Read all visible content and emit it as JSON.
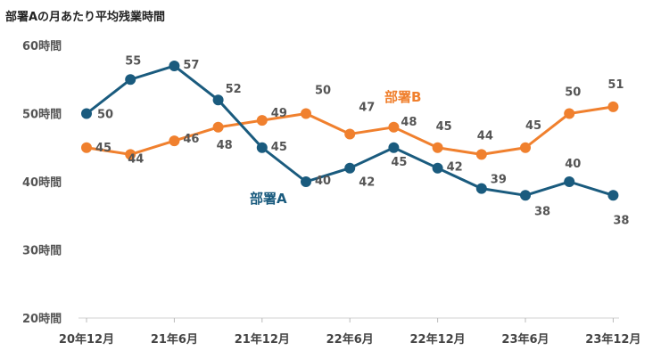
{
  "chart_data": {
    "type": "line",
    "title": "部署Aの月あたり平均残業時間",
    "xlabel": "",
    "ylabel": "",
    "ylim": [
      20,
      60
    ],
    "y_ticks": [
      "60時間",
      "50時間",
      "40時間",
      "30時間",
      "20時間"
    ],
    "x_tick_labels": [
      "20年12月",
      "21年6月",
      "21年12月",
      "22年6月",
      "22年12月",
      "23年6月",
      "23年12月"
    ],
    "grid": false,
    "legend": "inline-labels",
    "series": [
      {
        "name": "部署A",
        "color": "#1a5b7e",
        "values": [
          50,
          55,
          57,
          52,
          45,
          40,
          42,
          45,
          42,
          39,
          38,
          40,
          38
        ]
      },
      {
        "name": "部署B",
        "color": "#f0802e",
        "values": [
          45,
          44,
          46,
          48,
          49,
          50,
          47,
          48,
          45,
          44,
          45,
          50,
          51
        ]
      }
    ]
  }
}
